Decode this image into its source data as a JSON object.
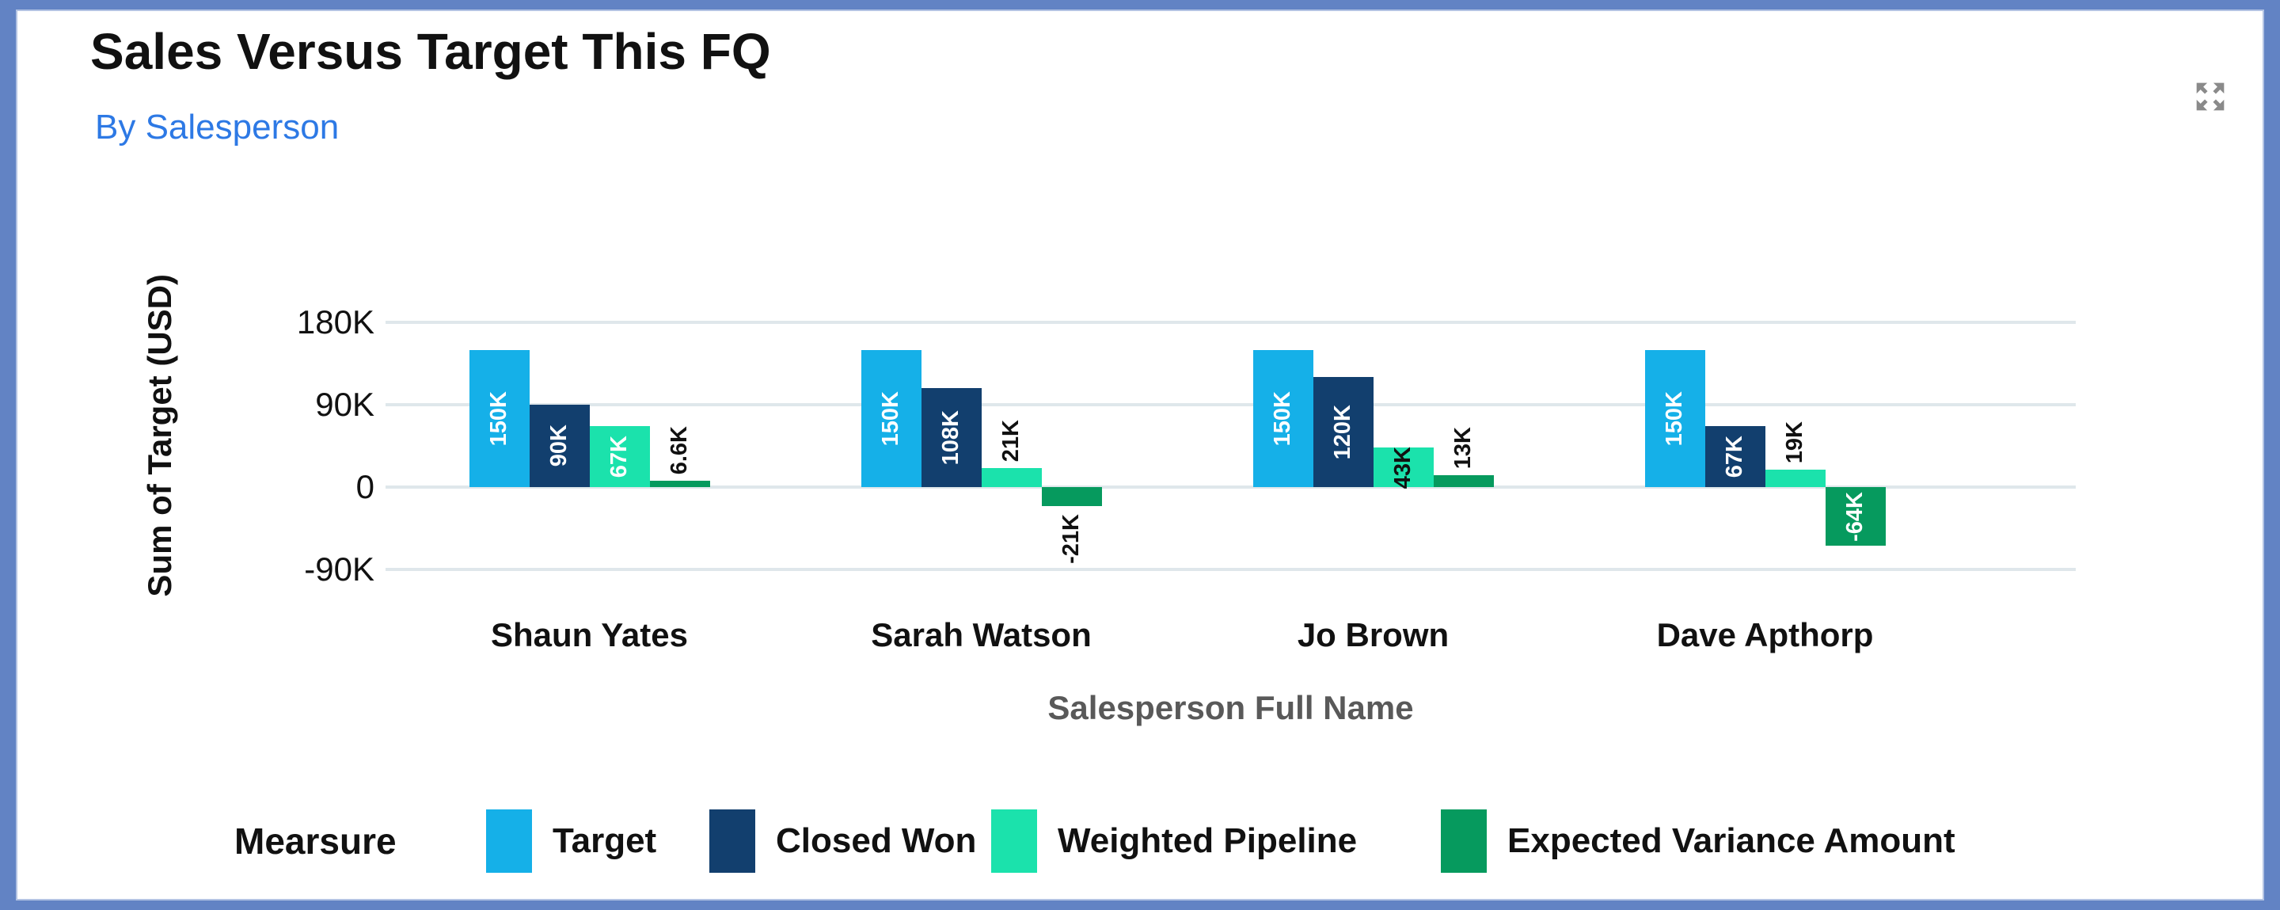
{
  "window": {
    "frame_color": "#6283C4",
    "card_background": "#FFFFFF"
  },
  "header": {
    "title": "Sales Versus Target This FQ",
    "subtitle": "By Salesperson",
    "title_color": "#111111",
    "subtitle_color": "#2D79E5",
    "expand_icon": "expand-arrows-icon",
    "expand_icon_color": "#8A8A8A"
  },
  "chart_data": {
    "type": "bar",
    "title": "Sales Versus Target This FQ",
    "subtitle": "By Salesperson",
    "xlabel": "Salesperson Full Name",
    "ylabel": "Sum of Target (USD)",
    "categories": [
      "Shaun Yates",
      "Sarah Watson",
      "Jo Brown",
      "Dave Apthorp"
    ],
    "yticks": [
      "180K",
      "90K",
      "0",
      "-90K"
    ],
    "ytick_values": [
      180000,
      90000,
      0,
      -90000
    ],
    "ylim": [
      -120000,
      250000
    ],
    "grid": true,
    "gridline_color": "#DFE7EB",
    "legend": {
      "title": "Mearsure",
      "position": "bottom"
    },
    "series": [
      {
        "name": "Target",
        "color": "#15B0E8",
        "values": [
          150000,
          150000,
          150000,
          150000
        ],
        "labels": [
          "150K",
          "150K",
          "150K",
          "150K"
        ],
        "label_layout": [
          "in",
          "in",
          "in",
          "in"
        ]
      },
      {
        "name": "Closed Won",
        "color": "#123F6E",
        "values": [
          90000,
          108000,
          120000,
          67000
        ],
        "labels": [
          "90K",
          "108K",
          "120K",
          "67K"
        ],
        "label_layout": [
          "in",
          "in",
          "in",
          "in"
        ]
      },
      {
        "name": "Weighted Pipeline",
        "color": "#1BE2AC",
        "values": [
          67000,
          21000,
          43000,
          19000
        ],
        "labels": [
          "67K",
          "21K",
          "43K",
          "19K"
        ],
        "label_layout": [
          "in",
          "out",
          "in-dark",
          "out"
        ]
      },
      {
        "name": "Expected Variance Amount",
        "color": "#069A5E",
        "values": [
          6600,
          -21000,
          13000,
          -64000
        ],
        "labels": [
          "6.6K",
          "-21K",
          "13K",
          "-64K"
        ],
        "label_layout": [
          "out",
          "out",
          "out",
          "in"
        ]
      }
    ],
    "axis_label_color": "#595959",
    "tick_label_color": "#111111"
  }
}
